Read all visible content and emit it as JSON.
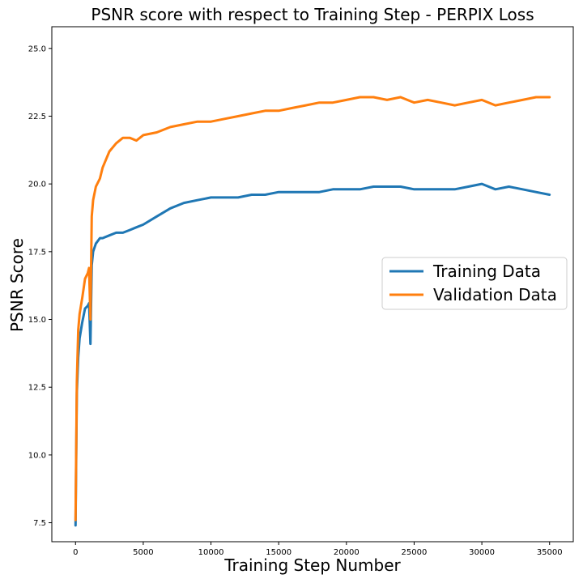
{
  "chart_data": {
    "type": "line",
    "title": "PSNR score with respect to Training Step - PERPIX Loss",
    "xlabel": "Training Step Number",
    "ylabel": "PSNR Score",
    "xlim": [
      -1750,
      36750
    ],
    "ylim": [
      6.8,
      25.8
    ],
    "xticks": [
      0,
      5000,
      10000,
      15000,
      20000,
      25000,
      30000,
      35000
    ],
    "yticks": [
      7.5,
      10.0,
      12.5,
      15.0,
      17.5,
      20.0,
      22.5,
      25.0
    ],
    "xtick_labels": [
      "0",
      "5000",
      "10000",
      "15000",
      "20000",
      "25000",
      "30000",
      "35000"
    ],
    "ytick_labels": [
      "7.5",
      "10.0",
      "12.5",
      "15.0",
      "17.5",
      "20.0",
      "22.5",
      "25.0"
    ],
    "legend_position": "center-right",
    "grid": false,
    "series": [
      {
        "name": "Training Data",
        "color": "#1f77b4",
        "x": [
          0,
          100,
          200,
          300,
          500,
          700,
          900,
          1000,
          1100,
          1200,
          1300,
          1500,
          1800,
          2000,
          2500,
          3000,
          3500,
          4000,
          4500,
          5000,
          6000,
          7000,
          8000,
          9000,
          10000,
          11000,
          12000,
          13000,
          14000,
          15000,
          16000,
          17000,
          18000,
          19000,
          20000,
          21000,
          22000,
          23000,
          24000,
          25000,
          26000,
          27000,
          28000,
          29000,
          30000,
          31000,
          32000,
          33000,
          34000,
          35000
        ],
        "y": [
          7.4,
          12.3,
          13.6,
          14.3,
          14.9,
          15.4,
          15.5,
          15.6,
          14.1,
          17.0,
          17.5,
          17.8,
          18.0,
          18.0,
          18.1,
          18.2,
          18.2,
          18.3,
          18.4,
          18.5,
          18.8,
          19.1,
          19.3,
          19.4,
          19.5,
          19.5,
          19.5,
          19.6,
          19.6,
          19.7,
          19.7,
          19.7,
          19.7,
          19.8,
          19.8,
          19.8,
          19.9,
          19.9,
          19.9,
          19.8,
          19.8,
          19.8,
          19.8,
          19.9,
          20.0,
          19.8,
          19.9,
          19.8,
          19.7,
          19.6
        ]
      },
      {
        "name": "Validation Data",
        "color": "#ff7f0e",
        "x": [
          0,
          100,
          200,
          300,
          500,
          700,
          900,
          1000,
          1100,
          1200,
          1300,
          1500,
          1800,
          2000,
          2500,
          3000,
          3500,
          4000,
          4500,
          5000,
          6000,
          7000,
          8000,
          9000,
          10000,
          11000,
          12000,
          13000,
          14000,
          15000,
          16000,
          17000,
          18000,
          19000,
          20000,
          21000,
          22000,
          23000,
          24000,
          25000,
          26000,
          27000,
          28000,
          29000,
          30000,
          31000,
          32000,
          33000,
          34000,
          35000
        ],
        "y": [
          7.6,
          12.7,
          14.6,
          15.2,
          15.8,
          16.5,
          16.7,
          16.9,
          15.0,
          18.8,
          19.4,
          19.9,
          20.2,
          20.6,
          21.2,
          21.5,
          21.7,
          21.7,
          21.6,
          21.8,
          21.9,
          22.1,
          22.2,
          22.3,
          22.3,
          22.4,
          22.5,
          22.6,
          22.7,
          22.7,
          22.8,
          22.9,
          23.0,
          23.0,
          23.1,
          23.2,
          23.2,
          23.1,
          23.2,
          23.0,
          23.1,
          23.0,
          22.9,
          23.0,
          23.1,
          22.9,
          23.0,
          23.1,
          23.2,
          23.2
        ]
      }
    ]
  }
}
